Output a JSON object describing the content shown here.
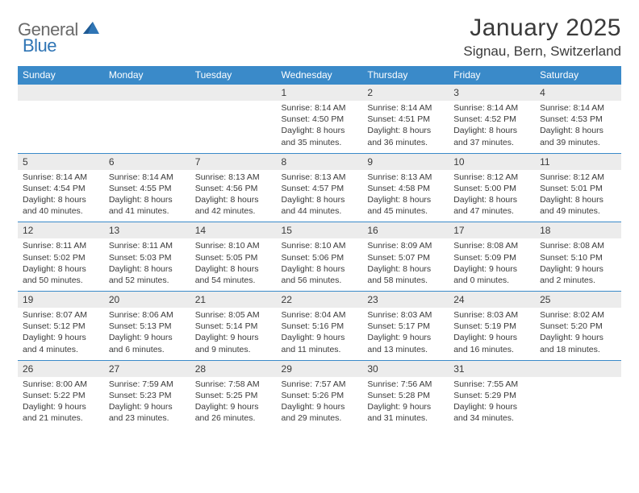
{
  "brand": {
    "word1": "General",
    "word2": "Blue"
  },
  "title": "January 2025",
  "location": "Signau, Bern, Switzerland",
  "colors": {
    "header_bg": "#3a8ac9",
    "daynum_bg": "#ececec",
    "rule": "#3a8ac9",
    "text": "#3a3a3a",
    "logo_gray": "#6a6a6a",
    "logo_blue": "#2f75b5"
  },
  "day_headers": [
    "Sunday",
    "Monday",
    "Tuesday",
    "Wednesday",
    "Thursday",
    "Friday",
    "Saturday"
  ],
  "weeks": [
    [
      null,
      null,
      null,
      {
        "n": "1",
        "sunrise": "8:14 AM",
        "sunset": "4:50 PM",
        "dl_h": 8,
        "dl_m": 35
      },
      {
        "n": "2",
        "sunrise": "8:14 AM",
        "sunset": "4:51 PM",
        "dl_h": 8,
        "dl_m": 36
      },
      {
        "n": "3",
        "sunrise": "8:14 AM",
        "sunset": "4:52 PM",
        "dl_h": 8,
        "dl_m": 37
      },
      {
        "n": "4",
        "sunrise": "8:14 AM",
        "sunset": "4:53 PM",
        "dl_h": 8,
        "dl_m": 39
      }
    ],
    [
      {
        "n": "5",
        "sunrise": "8:14 AM",
        "sunset": "4:54 PM",
        "dl_h": 8,
        "dl_m": 40
      },
      {
        "n": "6",
        "sunrise": "8:14 AM",
        "sunset": "4:55 PM",
        "dl_h": 8,
        "dl_m": 41
      },
      {
        "n": "7",
        "sunrise": "8:13 AM",
        "sunset": "4:56 PM",
        "dl_h": 8,
        "dl_m": 42
      },
      {
        "n": "8",
        "sunrise": "8:13 AM",
        "sunset": "4:57 PM",
        "dl_h": 8,
        "dl_m": 44
      },
      {
        "n": "9",
        "sunrise": "8:13 AM",
        "sunset": "4:58 PM",
        "dl_h": 8,
        "dl_m": 45
      },
      {
        "n": "10",
        "sunrise": "8:12 AM",
        "sunset": "5:00 PM",
        "dl_h": 8,
        "dl_m": 47
      },
      {
        "n": "11",
        "sunrise": "8:12 AM",
        "sunset": "5:01 PM",
        "dl_h": 8,
        "dl_m": 49
      }
    ],
    [
      {
        "n": "12",
        "sunrise": "8:11 AM",
        "sunset": "5:02 PM",
        "dl_h": 8,
        "dl_m": 50
      },
      {
        "n": "13",
        "sunrise": "8:11 AM",
        "sunset": "5:03 PM",
        "dl_h": 8,
        "dl_m": 52
      },
      {
        "n": "14",
        "sunrise": "8:10 AM",
        "sunset": "5:05 PM",
        "dl_h": 8,
        "dl_m": 54
      },
      {
        "n": "15",
        "sunrise": "8:10 AM",
        "sunset": "5:06 PM",
        "dl_h": 8,
        "dl_m": 56
      },
      {
        "n": "16",
        "sunrise": "8:09 AM",
        "sunset": "5:07 PM",
        "dl_h": 8,
        "dl_m": 58
      },
      {
        "n": "17",
        "sunrise": "8:08 AM",
        "sunset": "5:09 PM",
        "dl_h": 9,
        "dl_m": 0
      },
      {
        "n": "18",
        "sunrise": "8:08 AM",
        "sunset": "5:10 PM",
        "dl_h": 9,
        "dl_m": 2
      }
    ],
    [
      {
        "n": "19",
        "sunrise": "8:07 AM",
        "sunset": "5:12 PM",
        "dl_h": 9,
        "dl_m": 4
      },
      {
        "n": "20",
        "sunrise": "8:06 AM",
        "sunset": "5:13 PM",
        "dl_h": 9,
        "dl_m": 6
      },
      {
        "n": "21",
        "sunrise": "8:05 AM",
        "sunset": "5:14 PM",
        "dl_h": 9,
        "dl_m": 9
      },
      {
        "n": "22",
        "sunrise": "8:04 AM",
        "sunset": "5:16 PM",
        "dl_h": 9,
        "dl_m": 11
      },
      {
        "n": "23",
        "sunrise": "8:03 AM",
        "sunset": "5:17 PM",
        "dl_h": 9,
        "dl_m": 13
      },
      {
        "n": "24",
        "sunrise": "8:03 AM",
        "sunset": "5:19 PM",
        "dl_h": 9,
        "dl_m": 16
      },
      {
        "n": "25",
        "sunrise": "8:02 AM",
        "sunset": "5:20 PM",
        "dl_h": 9,
        "dl_m": 18
      }
    ],
    [
      {
        "n": "26",
        "sunrise": "8:00 AM",
        "sunset": "5:22 PM",
        "dl_h": 9,
        "dl_m": 21
      },
      {
        "n": "27",
        "sunrise": "7:59 AM",
        "sunset": "5:23 PM",
        "dl_h": 9,
        "dl_m": 23
      },
      {
        "n": "28",
        "sunrise": "7:58 AM",
        "sunset": "5:25 PM",
        "dl_h": 9,
        "dl_m": 26
      },
      {
        "n": "29",
        "sunrise": "7:57 AM",
        "sunset": "5:26 PM",
        "dl_h": 9,
        "dl_m": 29
      },
      {
        "n": "30",
        "sunrise": "7:56 AM",
        "sunset": "5:28 PM",
        "dl_h": 9,
        "dl_m": 31
      },
      {
        "n": "31",
        "sunrise": "7:55 AM",
        "sunset": "5:29 PM",
        "dl_h": 9,
        "dl_m": 34
      },
      null
    ]
  ],
  "labels": {
    "sunrise_prefix": "Sunrise: ",
    "sunset_prefix": "Sunset: ",
    "daylight_prefix": "Daylight: ",
    "hours_word": " hours",
    "and_word": "and ",
    "minutes_word": " minutes."
  }
}
